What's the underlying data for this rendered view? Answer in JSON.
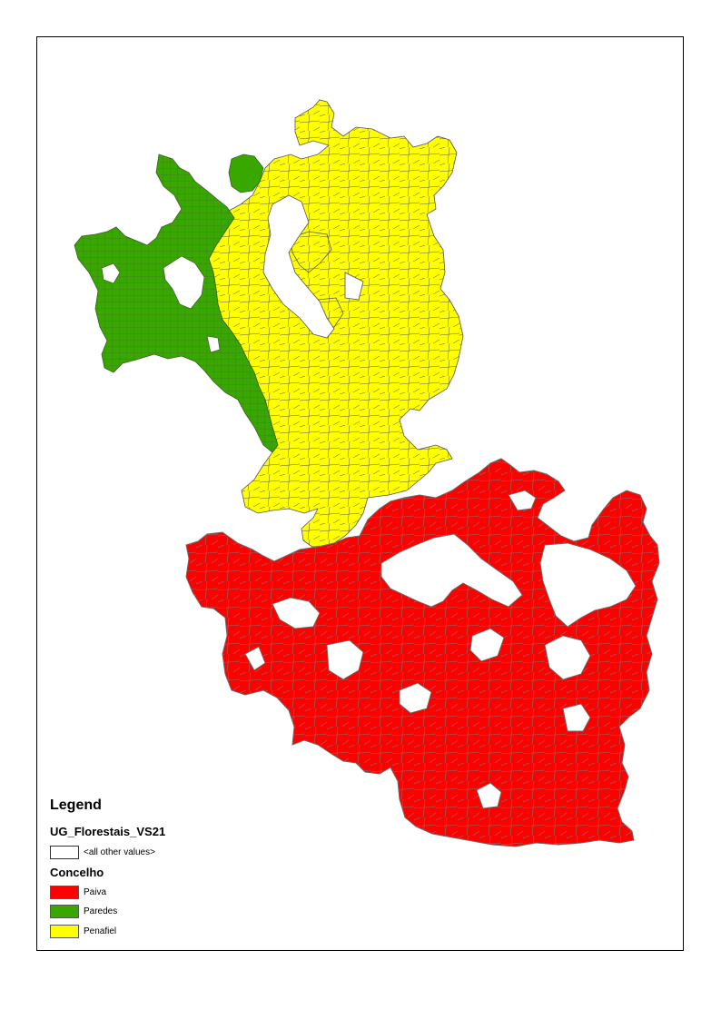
{
  "legend": {
    "title": "Legend",
    "layer_name": "UG_Florestais_VS21",
    "other_values_label": "<all other values>",
    "field_name": "Concelho",
    "classes": [
      {
        "label": "Paiva",
        "color": "#ff0000"
      },
      {
        "label": "Paredes",
        "color": "#38a800"
      },
      {
        "label": "Penafiel",
        "color": "#ffff00"
      }
    ]
  },
  "colors": {
    "paiva": "#ff0000",
    "paredes": "#38a800",
    "penafiel": "#ffff00",
    "parcel_outline_paiva": "#6b6b6b",
    "parcel_outline_other": "#555555",
    "other_values": "#ffffff"
  }
}
